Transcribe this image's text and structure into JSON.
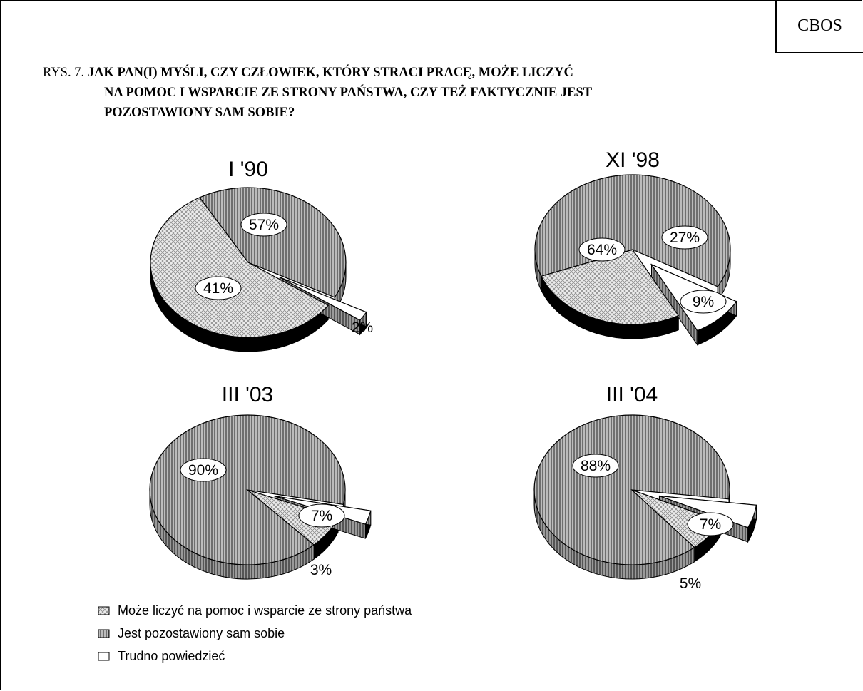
{
  "header": {
    "badge": "CBOS",
    "caption_prefix": "RYS. 7.",
    "caption_line1": "JAK PAN(I) MYŚLI, CZY CZŁOWIEK, KTÓRY STRACI PRACĘ, MOŻE LICZYĆ",
    "caption_line2": "NA  POMOC I WSPARCIE ZE STRONY PAŃSTWA, CZY TEŻ FAKTYCZNIE JEST",
    "caption_line3": "POZOSTAWIONY SAM SOBIE?"
  },
  "chart_data": {
    "type": "pie",
    "legend_position": "bottom-left",
    "categories": [
      "Może liczyć na pomoc i wsparcie ze strony państwa",
      "Jest pozostawiony sam sobie",
      "Trudno powiedzieć"
    ],
    "patterns": [
      "crosshatch",
      "vertical-stripes",
      "white"
    ],
    "colors": {
      "crosshatch_bg": "#e6e6e6",
      "stripes": "#777777",
      "stripes_bg": "#bcbcbc",
      "white": "#ffffff",
      "side": "#000000"
    },
    "pies": [
      {
        "title": "I '90",
        "values": [
          57,
          41,
          2
        ],
        "labels": [
          "57%",
          "41%",
          "2%"
        ]
      },
      {
        "title": "XI '98",
        "values": [
          27,
          64,
          9
        ],
        "labels": [
          "27%",
          "64%",
          "9%"
        ]
      },
      {
        "title": "III '03",
        "values": [
          7,
          90,
          3
        ],
        "labels": [
          "7%",
          "90%",
          "3%"
        ]
      },
      {
        "title": "III '04",
        "values": [
          7,
          88,
          5
        ],
        "labels": [
          "7%",
          "88%",
          "5%"
        ]
      }
    ]
  }
}
